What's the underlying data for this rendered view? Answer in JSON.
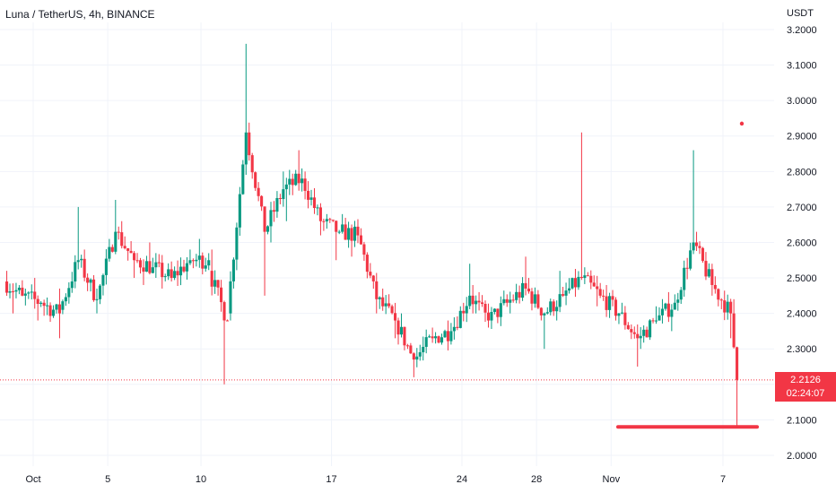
{
  "header": {
    "symbol_title": "Luna / TetherUS, 4h, BINANCE"
  },
  "colors": {
    "up": "#089981",
    "down": "#f23645",
    "grid": "#f0f3fa",
    "text": "#131722"
  },
  "last_price": {
    "price": "2.2126",
    "countdown": "02:24:07"
  },
  "chart_data": {
    "type": "candlestick",
    "title": "",
    "ylabel": "USDT",
    "ylim": [
      1.95,
      3.25
    ],
    "y_ticks": [
      "3.2000",
      "3.1000",
      "3.0000",
      "2.9000",
      "2.8000",
      "2.7000",
      "2.6000",
      "2.5000",
      "2.4000",
      "2.3000",
      "2.2000",
      "2.1000",
      "2.0000"
    ],
    "y_tick_values": [
      3.2,
      3.1,
      3.0,
      2.9,
      2.8,
      2.7,
      2.6,
      2.5,
      2.4,
      2.3,
      2.2,
      2.1,
      2.0
    ],
    "x_ticks": [
      "Oct",
      "5",
      "10",
      "17",
      "24",
      "28",
      "Nov",
      "7"
    ],
    "x_tick_dates": [
      "2022-10-01",
      "2022-10-05",
      "2022-10-10",
      "2022-10-17",
      "2022-10-24",
      "2022-10-28",
      "2022-11-01",
      "2022-11-07"
    ],
    "date_range": [
      "2022-09-30",
      "2022-11-07"
    ],
    "grid": true,
    "support_line": 2.08,
    "marker_point": 2.935,
    "ohlc_anchors": [
      [
        "2022-09-30",
        2.49,
        2.52,
        2.4,
        2.45
      ],
      [
        "2022-10-01",
        2.45,
        2.5,
        2.38,
        2.43
      ],
      [
        "2022-10-02",
        2.43,
        2.47,
        2.33,
        2.4
      ],
      [
        "2022-10-03",
        2.41,
        2.7,
        2.4,
        2.55
      ],
      [
        "2022-10-04",
        2.55,
        2.58,
        2.4,
        2.44
      ],
      [
        "2022-10-05",
        2.44,
        2.72,
        2.43,
        2.63
      ],
      [
        "2022-10-06",
        2.63,
        2.66,
        2.5,
        2.55
      ],
      [
        "2022-10-07",
        2.55,
        2.6,
        2.48,
        2.53
      ],
      [
        "2022-10-08",
        2.53,
        2.56,
        2.47,
        2.5
      ],
      [
        "2022-10-09",
        2.5,
        2.58,
        2.48,
        2.55
      ],
      [
        "2022-10-10",
        2.55,
        2.61,
        2.52,
        2.55
      ],
      [
        "2022-10-11",
        2.52,
        2.58,
        2.2,
        2.38
      ],
      [
        "2022-10-12",
        2.4,
        3.16,
        2.38,
        2.91
      ],
      [
        "2022-10-13",
        2.91,
        2.93,
        2.45,
        2.63
      ],
      [
        "2022-10-14",
        2.63,
        2.8,
        2.6,
        2.75
      ],
      [
        "2022-10-15",
        2.75,
        2.86,
        2.66,
        2.78
      ],
      [
        "2022-10-16",
        2.78,
        2.8,
        2.62,
        2.66
      ],
      [
        "2022-10-17",
        2.66,
        2.68,
        2.55,
        2.63
      ],
      [
        "2022-10-18",
        2.63,
        2.68,
        2.56,
        2.62
      ],
      [
        "2022-10-19",
        2.62,
        2.64,
        2.4,
        2.44
      ],
      [
        "2022-10-20",
        2.44,
        2.47,
        2.33,
        2.38
      ],
      [
        "2022-10-21",
        2.38,
        2.4,
        2.22,
        2.27
      ],
      [
        "2022-10-22",
        2.27,
        2.36,
        2.25,
        2.33
      ],
      [
        "2022-10-23",
        2.33,
        2.38,
        2.3,
        2.35
      ],
      [
        "2022-10-24",
        2.35,
        2.54,
        2.34,
        2.45
      ],
      [
        "2022-10-25",
        2.45,
        2.48,
        2.36,
        2.38
      ],
      [
        "2022-10-26",
        2.38,
        2.46,
        2.37,
        2.43
      ],
      [
        "2022-10-27",
        2.43,
        2.56,
        2.4,
        2.47
      ],
      [
        "2022-10-28",
        2.47,
        2.5,
        2.3,
        2.4
      ],
      [
        "2022-10-29",
        2.4,
        2.52,
        2.38,
        2.45
      ],
      [
        "2022-10-30",
        2.45,
        2.91,
        2.44,
        2.5
      ],
      [
        "2022-10-31",
        2.5,
        2.53,
        2.42,
        2.45
      ],
      [
        "2022-11-01",
        2.45,
        2.48,
        2.37,
        2.4
      ],
      [
        "2022-11-02",
        2.4,
        2.43,
        2.25,
        2.33
      ],
      [
        "2022-11-03",
        2.33,
        2.42,
        2.3,
        2.38
      ],
      [
        "2022-11-04",
        2.38,
        2.46,
        2.35,
        2.43
      ],
      [
        "2022-11-05",
        2.43,
        2.86,
        2.42,
        2.6
      ],
      [
        "2022-11-06",
        2.6,
        2.63,
        2.45,
        2.48
      ],
      [
        "2022-11-07",
        2.48,
        2.5,
        2.33,
        2.4
      ],
      [
        "2022-11-08",
        2.4,
        2.44,
        2.08,
        2.2126
      ]
    ]
  }
}
